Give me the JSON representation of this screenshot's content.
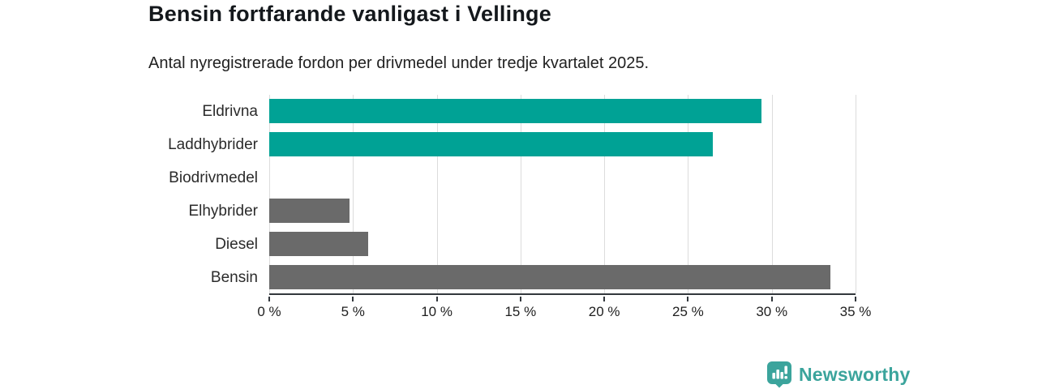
{
  "title": "Bensin fortfarande vanligast i Vellinge",
  "subtitle": "Antal nyregistrerade fordon per drivmedel under tredje kvartalet 2025.",
  "logo": {
    "text": "Newsworthy",
    "icon": "newsworthy-speech-bubble-barchart-icon",
    "color": "#3ba49c"
  },
  "colors": {
    "teal_bar": "#00a295",
    "gray_bar": "#6a6a6a",
    "gridline": "#dcdcdc",
    "axis": "#33383d",
    "title_text": "#14181c",
    "body_text": "#212121"
  },
  "chart_data": {
    "type": "bar",
    "orientation": "horizontal",
    "title": "Bensin fortfarande vanligast i Vellinge",
    "subtitle": "Antal nyregistrerade fordon per drivmedel under tredje kvartalet 2025.",
    "categories": [
      "Eldrivna",
      "Laddhybrider",
      "Biodrivmedel",
      "Elhybrider",
      "Diesel",
      "Bensin"
    ],
    "values": [
      29.4,
      26.5,
      0,
      4.8,
      5.9,
      33.5
    ],
    "bar_colors": [
      "#00a295",
      "#00a295",
      "#00a295",
      "#6a6a6a",
      "#6a6a6a",
      "#6a6a6a"
    ],
    "xlabel": "",
    "ylabel": "",
    "xlim": [
      0,
      35
    ],
    "xticks": [
      0,
      5,
      10,
      15,
      20,
      25,
      30,
      35
    ],
    "xtick_labels": [
      "0 %",
      "5 %",
      "10 %",
      "15 %",
      "20 %",
      "25 %",
      "30 %",
      "35 %"
    ],
    "grid": true,
    "legend": false
  }
}
